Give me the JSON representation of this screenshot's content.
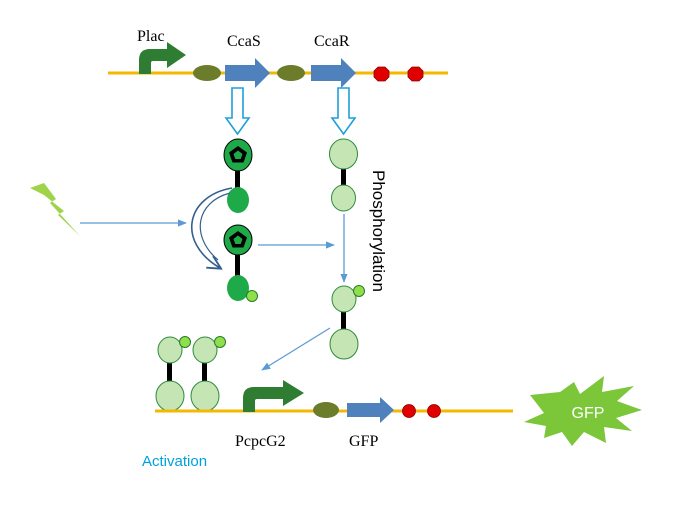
{
  "labels": {
    "plac": "Plac",
    "ccas": "CcaS",
    "ccar": "CcaR",
    "phosphorylation": "Phosphorylation",
    "pcpcg2": "PcpcG2",
    "gfp_gene": "GFP",
    "gfp_protein": "GFP",
    "activation": "Activation"
  },
  "icons": [
    "promoter-arrow-icon",
    "rbs-icon",
    "gene-arrow-icon",
    "terminator-icon",
    "light-bolt-icon",
    "chromophore-pentagon-icon",
    "phosphate-icon"
  ],
  "colors": {
    "dna": "#f5b800",
    "promoter": "#2e7d32",
    "rbs": "#6b7d2a",
    "gene": "#4f81bd",
    "terminator": "#e00000",
    "ccas_dark": "#1faa4a",
    "ccar_light": "#c6e5b4",
    "phosphate": "#8ee04a",
    "arrow": "#5b9bd5",
    "light": "#9ed34a",
    "gfp_burst": "#7cc63a",
    "activation_text": "#00a0e0"
  }
}
